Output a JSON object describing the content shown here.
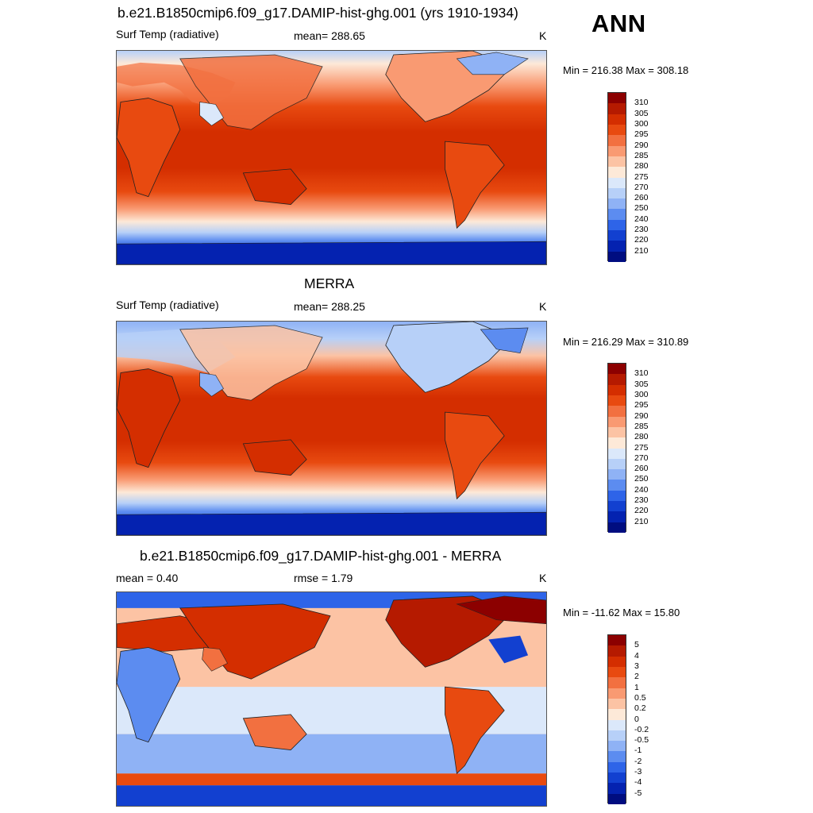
{
  "season": "ANN",
  "panels": [
    {
      "title": "b.e21.B1850cmip6.f09_g17.DAMIP-hist-ghg.001 (yrs 1910-1934)",
      "left_label": "Surf Temp (radiative)",
      "center_label": "mean= 288.65",
      "units": "K",
      "stats": "Min = 216.38 Max = 308.18"
    },
    {
      "title": "MERRA",
      "left_label": "Surf Temp (radiative)",
      "center_label": "mean= 288.25",
      "units": "K",
      "stats": "Min = 216.29 Max = 310.89"
    },
    {
      "title": "b.e21.B1850cmip6.f09_g17.DAMIP-hist-ghg.001 - MERRA",
      "left_label": "mean =   0.40",
      "center_label": "rmse =   1.79",
      "units": "K",
      "stats": "Min = -11.62 Max =  15.80"
    }
  ],
  "colorbar_abs": {
    "labels": [
      "310",
      "305",
      "300",
      "295",
      "290",
      "285",
      "280",
      "275",
      "270",
      "260",
      "250",
      "240",
      "230",
      "220",
      "210"
    ],
    "colors": [
      "#8c0000",
      "#b51a00",
      "#d42e00",
      "#e84a10",
      "#f27040",
      "#f99a72",
      "#fcc3a4",
      "#fde9d8",
      "#dbe8fa",
      "#b7d0f8",
      "#8fb2f5",
      "#5c8cf0",
      "#2e64e8",
      "#1240d0",
      "#0422b0",
      "#000d80"
    ]
  },
  "colorbar_diff": {
    "labels": [
      "5",
      "4",
      "3",
      "2",
      "1",
      "0.5",
      "0.2",
      "0",
      "-0.2",
      "-0.5",
      "-1",
      "-2",
      "-3",
      "-4",
      "-5"
    ],
    "colors": [
      "#8c0000",
      "#b51a00",
      "#d42e00",
      "#e84a10",
      "#f27040",
      "#f99a72",
      "#fcc3a4",
      "#fde9d8",
      "#dbe8fa",
      "#b7d0f8",
      "#8fb2f5",
      "#5c8cf0",
      "#2e64e8",
      "#1240d0",
      "#0422b0",
      "#000d80"
    ]
  }
}
